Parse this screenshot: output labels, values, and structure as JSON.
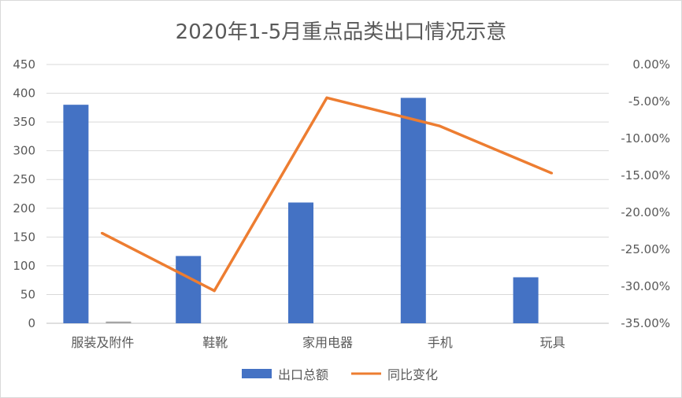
{
  "chart_data": {
    "type": "bar+line",
    "title": "2020年1-5月重点品类出口情况示意",
    "categories": [
      "服装及附件",
      "鞋靴",
      "家用电器",
      "手机",
      "玩具"
    ],
    "series": [
      {
        "name": "出口总额",
        "type": "bar",
        "axis": "left",
        "color": "#4472c4",
        "values": [
          380,
          117,
          210,
          392,
          80
        ]
      },
      {
        "name": "同比变化",
        "type": "line",
        "axis": "right",
        "color": "#ed7d31",
        "values": [
          -22.8,
          -30.6,
          -4.5,
          -8.3,
          -14.7
        ]
      }
    ],
    "extra_bar": {
      "category_index": 0,
      "value": 3,
      "color": "#a5a5a5"
    },
    "y_left": {
      "min": 0,
      "max": 450,
      "step": 50,
      "ticks": [
        "0",
        "50",
        "100",
        "150",
        "200",
        "250",
        "300",
        "350",
        "400",
        "450"
      ]
    },
    "y_right": {
      "min": -35,
      "max": 0,
      "step": 5,
      "ticks": [
        "0.00%",
        "-5.00%",
        "-10.00%",
        "-15.00%",
        "-20.00%",
        "-25.00%",
        "-30.00%",
        "-35.00%"
      ]
    },
    "grid": true,
    "legend": {
      "placement": "bottom",
      "entries": [
        "出口总额",
        "同比变化"
      ]
    }
  }
}
